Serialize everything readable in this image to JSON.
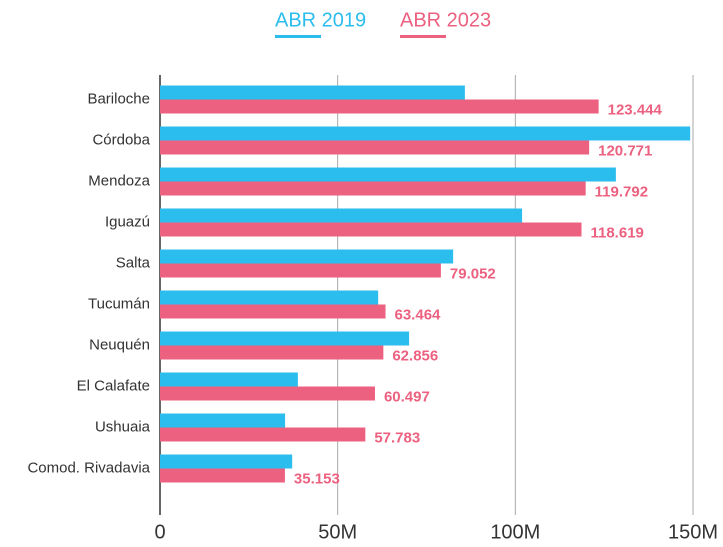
{
  "chart_data": {
    "type": "hbar",
    "categories": [
      "Bariloche",
      "Córdoba",
      "Mendoza",
      "Iguazú",
      "Salta",
      "Tucumán",
      "Neuquén",
      "El Calafate",
      "Ushuaia",
      "Comod. Rivadavia"
    ],
    "series": [
      {
        "name": "ABR 2019",
        "color": "#2bbdee",
        "values": [
          85.8,
          149.2,
          128.3,
          101.9,
          82.5,
          61.4,
          70.1,
          38.8,
          35.2,
          37.2
        ]
      },
      {
        "name": "ABR 2023",
        "color": "#ec6180",
        "values": [
          123.444,
          120.771,
          119.792,
          118.619,
          79.052,
          63.464,
          62.856,
          60.497,
          57.783,
          35.153
        ],
        "show_values": true
      }
    ],
    "xlim": [
      0,
      150
    ],
    "xticks": [
      0,
      {
        "value": 50,
        "label": "50M"
      },
      {
        "value": 100,
        "label": "100M"
      },
      {
        "value": 150,
        "label": "150M"
      }
    ],
    "grid": true,
    "legend": "top"
  }
}
